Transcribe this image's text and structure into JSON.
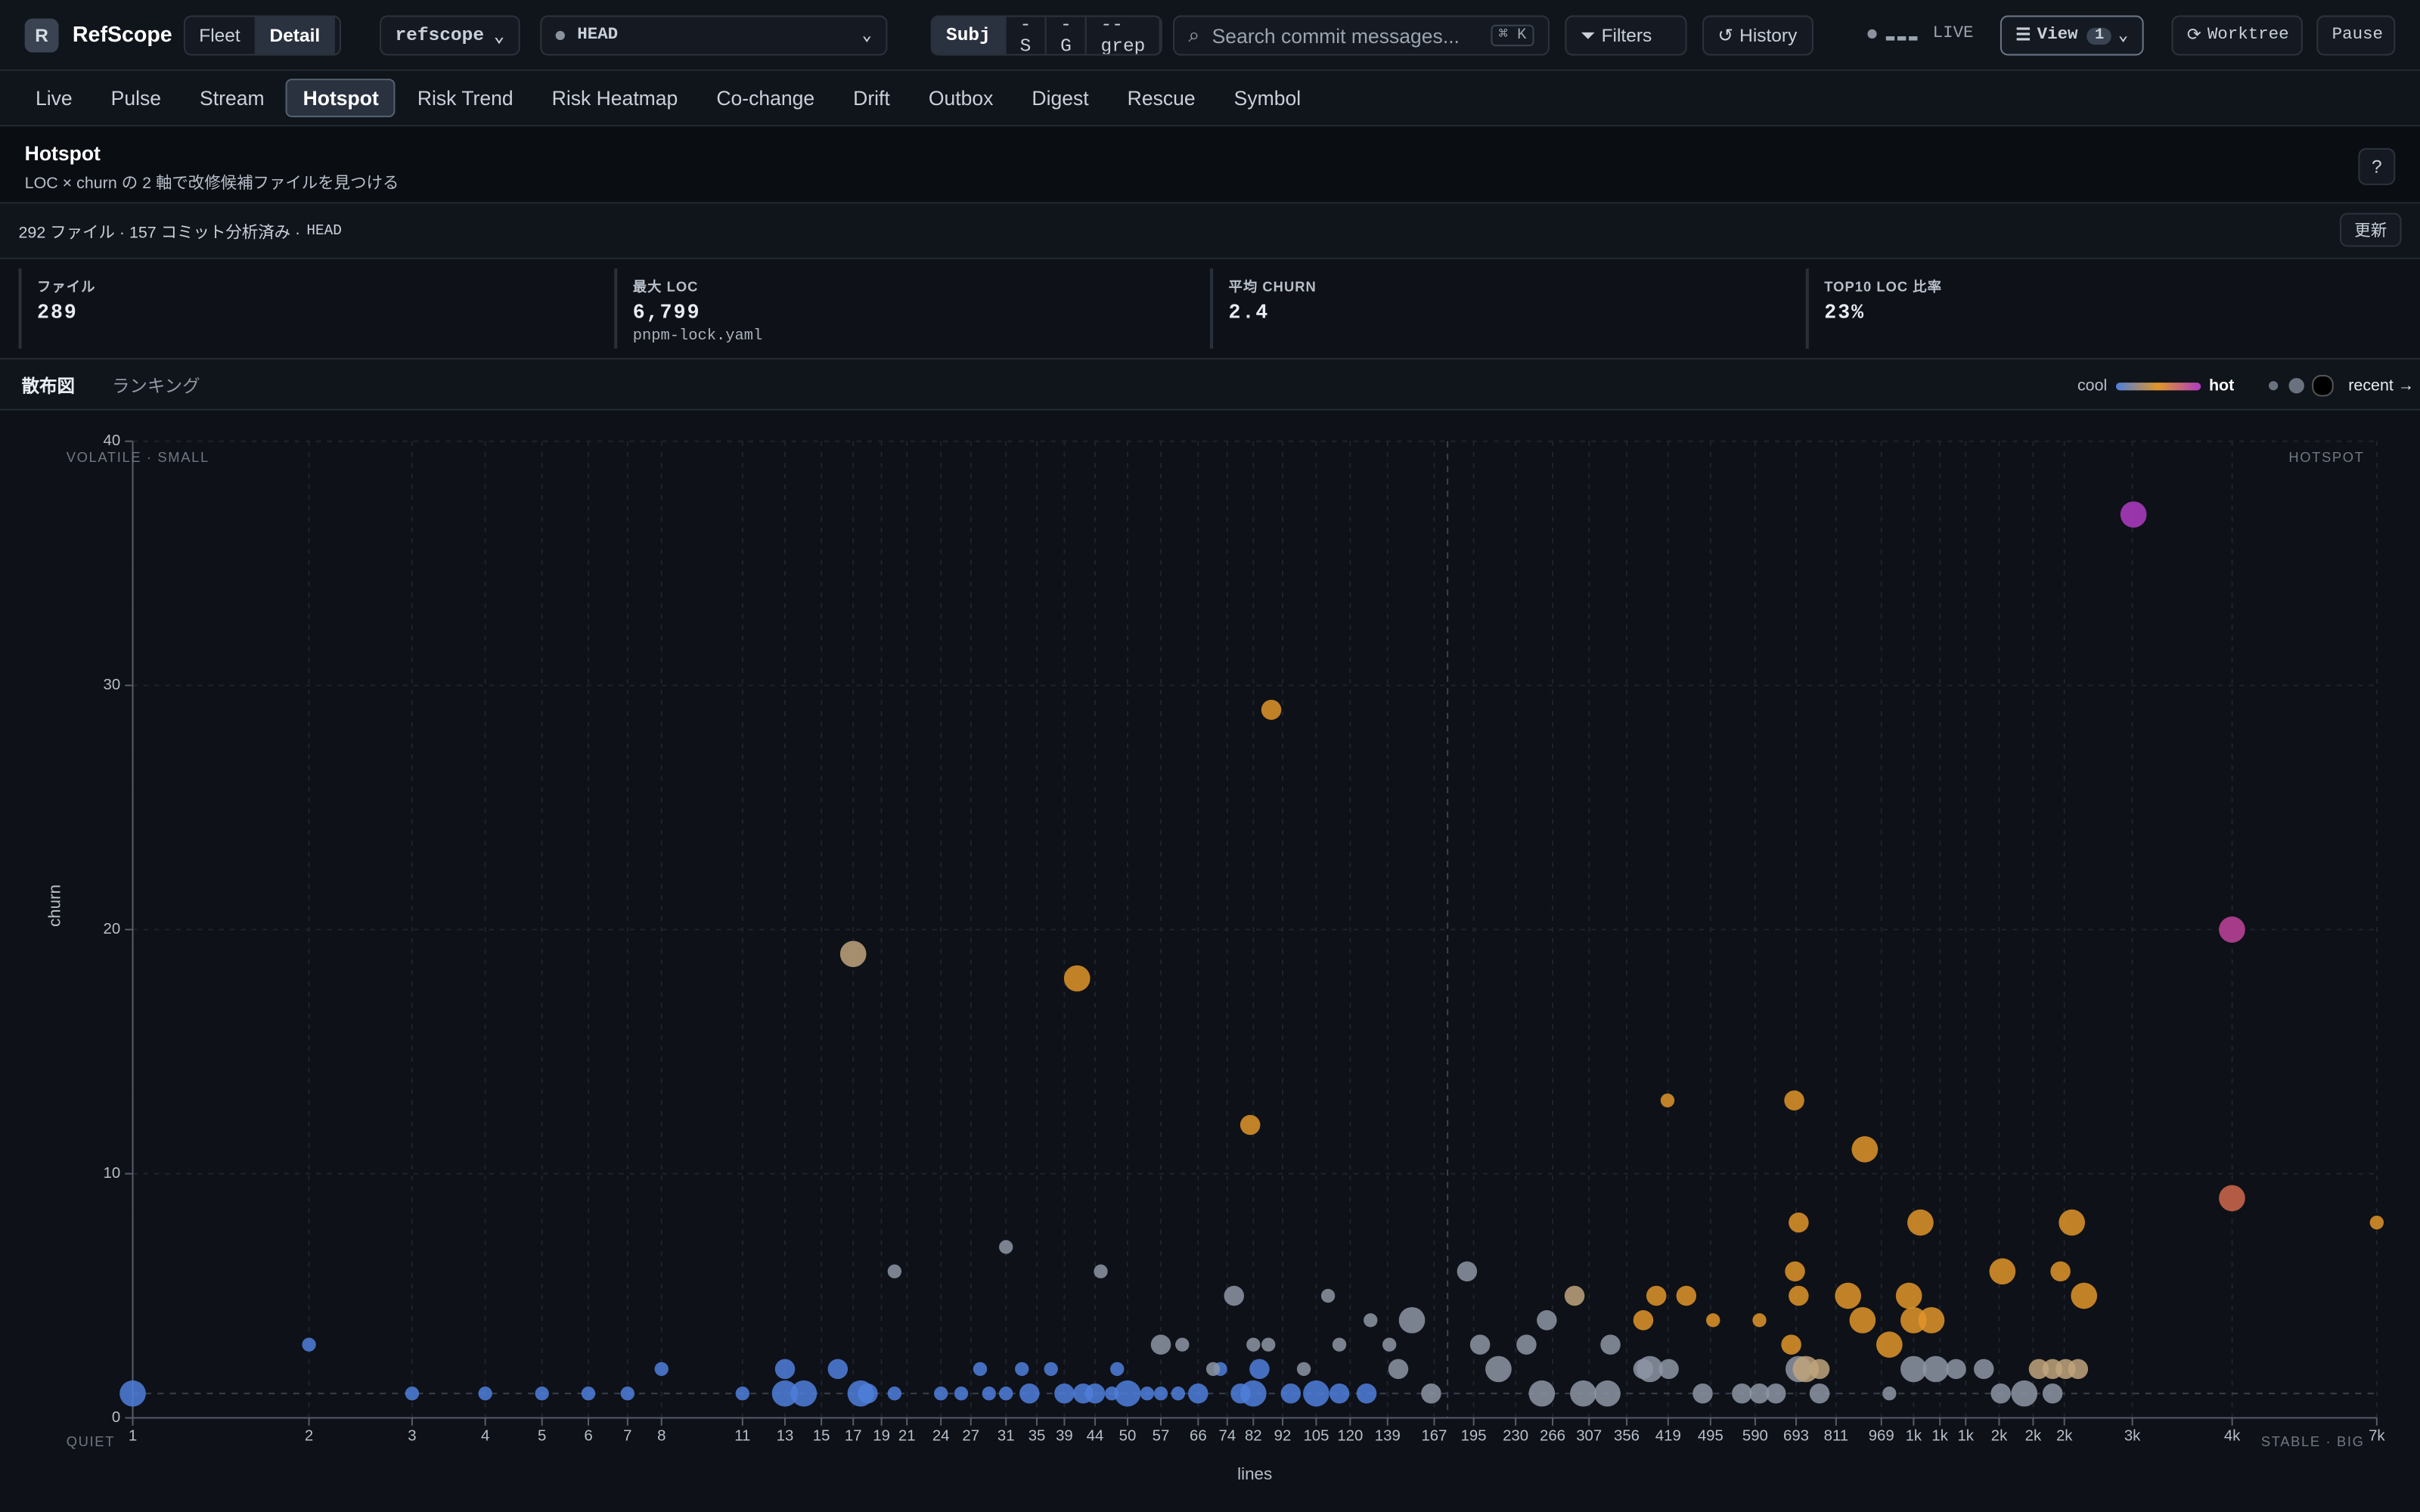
{
  "header": {
    "logo": "R",
    "app": "RefScope",
    "modes": [
      "Fleet",
      "Detail"
    ],
    "active_mode": 1,
    "repo": "refscope",
    "ref": "HEAD",
    "search_modes": [
      "Subj",
      "-S",
      "-G",
      "--grep"
    ],
    "active_search_mode": 0,
    "search_placeholder": "Search commit messages...",
    "shortcut": "⌘ K",
    "filters": "Filters",
    "history": "History",
    "live": "LIVE",
    "view": "View",
    "view_count": 1,
    "worktree": "Worktree",
    "pause": "Pause"
  },
  "tabs": [
    "Live",
    "Pulse",
    "Stream",
    "Hotspot",
    "Risk Trend",
    "Risk Heatmap",
    "Co-change",
    "Drift",
    "Outbox",
    "Digest",
    "Rescue",
    "Symbol"
  ],
  "active_tab": 3,
  "section": {
    "title": "Hotspot",
    "subtitle": "LOC × churn の 2 軸で改修候補ファイルを見つける",
    "help": "?"
  },
  "status": {
    "summary": "292 ファイル · 157 コミット分析済み ·",
    "ref": "HEAD",
    "refresh": "更新"
  },
  "stats": [
    {
      "label": "ファイル",
      "value": "289"
    },
    {
      "label": "最大 LOC",
      "value": "6,799",
      "note": "pnpm-lock.yaml"
    },
    {
      "label": "平均 CHURN",
      "value": "2.4"
    },
    {
      "label": "TOP10 LOC 比率",
      "value": "23%"
    }
  ],
  "subtabs": [
    "散布図",
    "ランキング"
  ],
  "active_subtab": 0,
  "chart_data": {
    "type": "scatter",
    "x_label": "lines",
    "y_label": "churn",
    "corner_labels": {
      "top_left": "VOLATILE · SMALL",
      "top_right": "HOTSPOT",
      "bottom_left": "QUIET",
      "bottom_right": "STABLE · BIG"
    },
    "legend": {
      "cool": "cool",
      "hot": "hot",
      "recent": "recent →"
    },
    "color_scale": [
      "#4f7fdc",
      "#e0952a",
      "#b03cc4"
    ],
    "xscale": "log",
    "xlim": [
      1,
      6799
    ],
    "ylim": [
      0,
      40
    ],
    "xticks": [
      1,
      2,
      3,
      4,
      5,
      6,
      7,
      8,
      11,
      13,
      15,
      17,
      19,
      21,
      24,
      27,
      31,
      35,
      39,
      44,
      50,
      57,
      66,
      74,
      82,
      92,
      105,
      120,
      139,
      167,
      195,
      230,
      266,
      307,
      356,
      419,
      495,
      590,
      693,
      811,
      969,
      {
        "value": 1100,
        "label": "1k"
      },
      {
        "value": 1220,
        "label": "1k"
      },
      {
        "value": 1350,
        "label": "1k"
      },
      {
        "value": 1540,
        "label": "2k"
      },
      {
        "value": 1760,
        "label": "2k"
      },
      {
        "value": 1990,
        "label": "2k"
      },
      {
        "value": 2600,
        "label": "3k"
      },
      {
        "value": 3850,
        "label": "4k"
      },
      {
        "value": 6799,
        "label": "7k"
      }
    ],
    "yticks": [
      0,
      10,
      20,
      30,
      40
    ],
    "grid": true,
    "reference_lines": {
      "x": 176,
      "y": 1
    },
    "series": [
      {
        "color": "#4f7fdc",
        "x": [
          1,
          2,
          3,
          4,
          5,
          6,
          7,
          8,
          11,
          13,
          13,
          14,
          16,
          17.5,
          18,
          20,
          24,
          26,
          28,
          29,
          31,
          33,
          34,
          37,
          39,
          42,
          44,
          47,
          48,
          50,
          54,
          57,
          61,
          66,
          72,
          78,
          82,
          84,
          95,
          105,
          115,
          128
        ],
        "values": [
          1,
          3,
          1,
          1,
          1,
          1,
          1,
          2,
          1,
          2,
          1,
          1,
          2,
          1,
          1,
          1,
          1,
          1,
          2,
          1,
          1,
          2,
          1,
          2,
          1,
          1,
          1,
          1,
          2,
          1,
          1,
          1,
          1,
          1,
          2,
          1,
          1,
          2,
          1,
          1,
          1,
          1
        ],
        "sizes": [
          3,
          1,
          1,
          1,
          1,
          1,
          1,
          1,
          1,
          2,
          3,
          3,
          2,
          3,
          2,
          1,
          1,
          1,
          1,
          1,
          1,
          1,
          2,
          1,
          2,
          2,
          2,
          1,
          1,
          3,
          1,
          1,
          1,
          2,
          1,
          2,
          3,
          2,
          2,
          3,
          2,
          2
        ]
      },
      {
        "color": "#8d95a5",
        "x": [
          20,
          31,
          45,
          57,
          62,
          70,
          76,
          82,
          87,
          100,
          110,
          115,
          130,
          140,
          145,
          153,
          165,
          190,
          200,
          215,
          240,
          255,
          260,
          300,
          330,
          334,
          380,
          390,
          420,
          480,
          560,
          600,
          640,
          700,
          760,
          1000,
          1100,
          1200,
          1300,
          1450,
          1550,
          1700,
          1900
        ],
        "values": [
          6,
          7,
          6,
          3,
          3,
          2,
          5,
          3,
          3,
          2,
          5,
          3,
          4,
          3,
          2,
          4,
          1,
          6,
          3,
          2,
          3,
          1,
          4,
          1,
          1,
          3,
          2,
          2,
          2,
          1,
          1,
          1,
          1,
          2,
          1,
          1,
          2,
          2,
          2,
          2,
          1,
          1,
          1
        ],
        "sizes": [
          1,
          1,
          1,
          2,
          1,
          1,
          2,
          1,
          1,
          1,
          1,
          1,
          1,
          1,
          2,
          3,
          2,
          2,
          2,
          3,
          2,
          3,
          2,
          3,
          3,
          2,
          2,
          3,
          2,
          2,
          2,
          2,
          2,
          3,
          2,
          1,
          3,
          3,
          2,
          2,
          2,
          3,
          2
        ]
      },
      {
        "color": "#bfa47c",
        "x": [
          17,
          290,
          720,
          760,
          1800,
          1900,
          2000,
          2100
        ],
        "values": [
          19,
          5,
          2,
          2,
          2,
          2,
          2,
          2
        ],
        "sizes": [
          3,
          2,
          3,
          2,
          2,
          2,
          2,
          2
        ]
      },
      {
        "color": "#e0952a",
        "x": [
          88,
          41,
          81,
          418,
          400,
          450,
          380,
          500,
          600,
          688,
          700,
          690,
          700,
          680,
          850,
          908,
          900,
          1000,
          1080,
          1130,
          1100,
          1180,
          1560,
          1960,
          2050,
          2150,
          6799
        ],
        "values": [
          29,
          18,
          12,
          13,
          5,
          5,
          4,
          4,
          4,
          13,
          8,
          6,
          5,
          3,
          5,
          11,
          4,
          3,
          5,
          8,
          4,
          4,
          6,
          6,
          8,
          5,
          8
        ],
        "sizes": [
          2,
          3,
          2,
          1,
          2,
          2,
          2,
          1,
          1,
          2,
          2,
          2,
          2,
          2,
          3,
          3,
          3,
          3,
          3,
          3,
          3,
          3,
          3,
          2,
          3,
          3,
          1
        ]
      },
      {
        "color": "#d0694e",
        "x": [
          3848
        ],
        "values": [
          9
        ],
        "sizes": [
          3
        ]
      },
      {
        "color": "#c0439e",
        "x": [
          3848
        ],
        "values": [
          20
        ],
        "sizes": [
          3
        ]
      },
      {
        "color": "#b03cc4",
        "x": [
          2612
        ],
        "values": [
          37
        ],
        "sizes": [
          3
        ]
      }
    ]
  }
}
